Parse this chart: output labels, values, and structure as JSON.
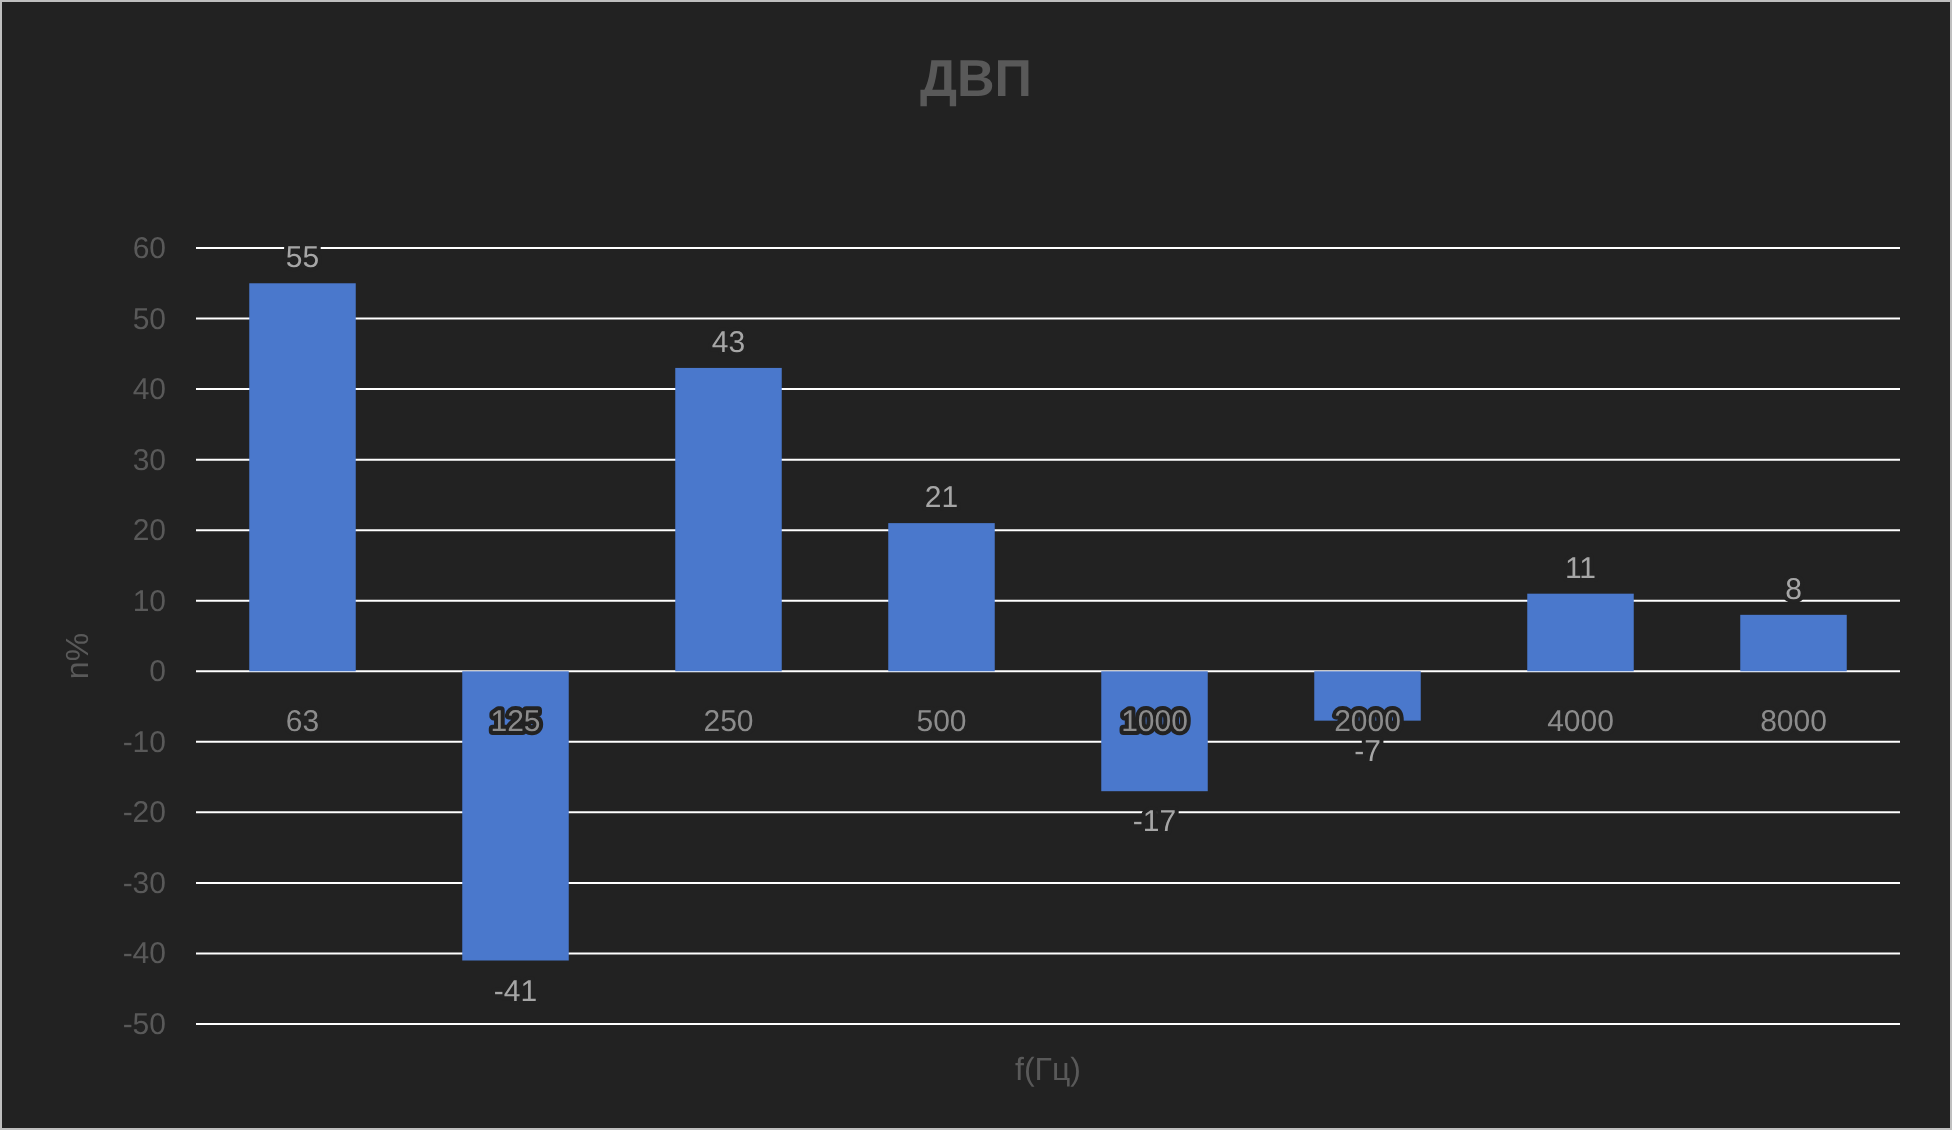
{
  "chart_data": {
    "type": "bar",
    "title": "ДВП",
    "xlabel": "f(Гц)",
    "ylabel": "n%",
    "categories": [
      "63",
      "125",
      "250",
      "500",
      "1000",
      "2000",
      "4000",
      "8000"
    ],
    "values": [
      55,
      -41,
      43,
      21,
      -17,
      -7,
      11,
      8
    ],
    "color": "#4a78cc",
    "ylim": [
      -50,
      60
    ],
    "yticks": [
      -50,
      -40,
      -30,
      -20,
      -10,
      0,
      10,
      20,
      30,
      40,
      50,
      60
    ],
    "grid": "y",
    "data_labels": true
  }
}
